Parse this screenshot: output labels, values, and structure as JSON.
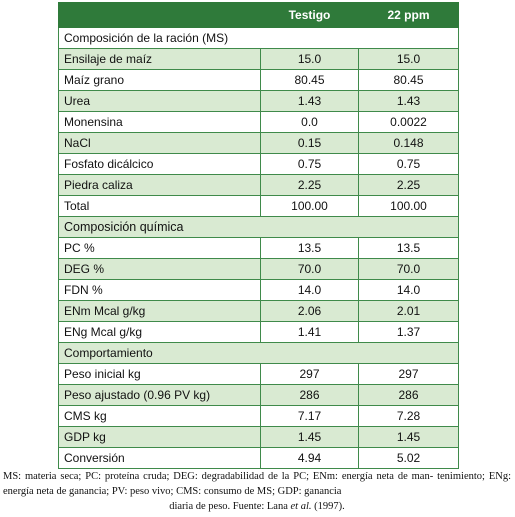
{
  "header": {
    "col1": "",
    "col2": "Testigo",
    "col3": "22 ppm"
  },
  "sections": [
    {
      "title": "Composición de la ración (MS)",
      "rows": [
        {
          "label": "Ensilaje de maíz",
          "testigo": "15.0",
          "ppm22": "15.0"
        },
        {
          "label": "Maíz grano",
          "testigo": "80.45",
          "ppm22": "80.45"
        },
        {
          "label": "Urea",
          "testigo": "1.43",
          "ppm22": "1.43"
        },
        {
          "label": "Monensina",
          "testigo": "0.0",
          "ppm22": "0.0022"
        },
        {
          "label": "NaCl",
          "testigo": "0.15",
          "ppm22": "0.148"
        },
        {
          "label": "Fosfato dicálcico",
          "testigo": "0.75",
          "ppm22": "0.75"
        },
        {
          "label": "Piedra caliza",
          "testigo": "2.25",
          "ppm22": "2.25"
        },
        {
          "label": "Total",
          "testigo": "100.00",
          "ppm22": "100.00"
        }
      ]
    },
    {
      "title": "Composición química",
      "rows": [
        {
          "label": "PC %",
          "testigo": "13.5",
          "ppm22": "13.5"
        },
        {
          "label": "DEG %",
          "testigo": "70.0",
          "ppm22": "70.0"
        },
        {
          "label": "FDN %",
          "testigo": "14.0",
          "ppm22": "14.0"
        },
        {
          "label": "ENm Mcal g/kg",
          "testigo": "2.06",
          "ppm22": "2.01"
        },
        {
          "label": "ENg Mcal g/kg",
          "testigo": "1.41",
          "ppm22": "1.37"
        }
      ]
    },
    {
      "title": "Comportamiento",
      "rows": [
        {
          "label": "Peso inicial kg",
          "testigo": "297",
          "ppm22": "297"
        },
        {
          "label": "Peso ajustado (0.96 PV kg)",
          "testigo": "286",
          "ppm22": "286"
        },
        {
          "label": "CMS kg",
          "testigo": "7.17",
          "ppm22": "7.28"
        },
        {
          "label": "GDP kg",
          "testigo": "1.45",
          "ppm22": "1.45"
        },
        {
          "label": "Conversión",
          "testigo": "4.94",
          "ppm22": "5.02"
        }
      ]
    }
  ],
  "footnote": {
    "line1": "MS: materia seca; PC: proteína cruda; DEG: degradabilidad de la PC; ENm: energía neta de man-",
    "line2": "tenimiento; ENg: energía neta de ganancia; PV: peso vivo; CMS: consumo de MS; GDP: ganancia",
    "line3_pre": "diaria de peso. Fuente: Lana ",
    "line3_em": "et al.",
    "line3_post": " (1997)."
  }
}
